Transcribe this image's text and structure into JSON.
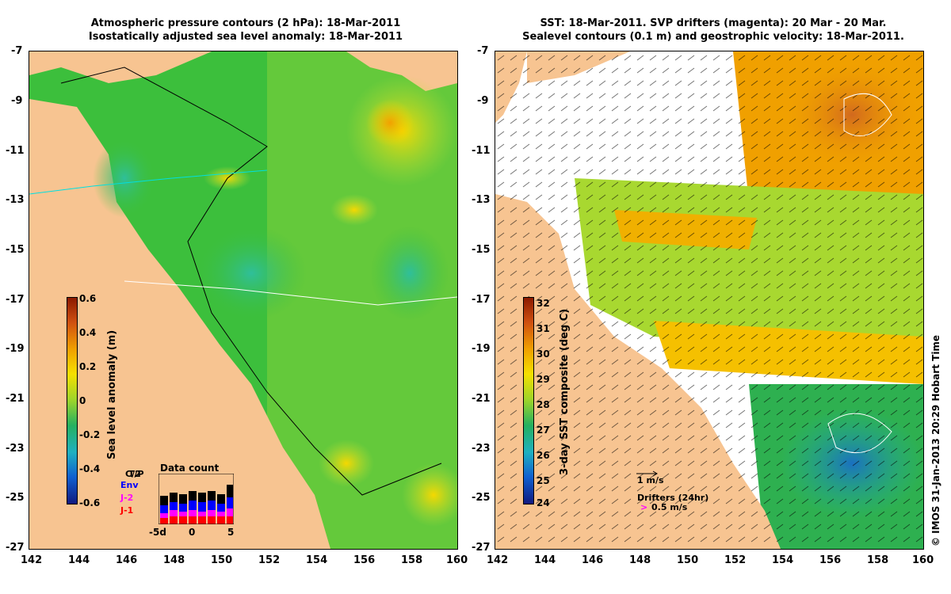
{
  "left_panel": {
    "title_line1": "Atmospheric pressure contours (2 hPa): 18-Mar-2011",
    "title_line2": "Isostatically adjusted sea level anomaly: 18-Mar-2011",
    "colorbar_title": "Sea level anomaly (m)",
    "colorbar_ticks": [
      "0.6",
      "0.4",
      "0.2",
      "0",
      "-0.2",
      "-0.4",
      "-0.6"
    ],
    "inset_title": "Data count",
    "inset_legend": [
      {
        "label": "C/2",
        "color": "#000000"
      },
      {
        "label": "T/P",
        "color": "#000000"
      },
      {
        "label": "Env",
        "color": "#0000ff"
      },
      {
        "label": "J-2",
        "color": "#ff00ff"
      },
      {
        "label": "J-1",
        "color": "#ff0000"
      }
    ],
    "inset_xticks": [
      "-5d",
      "0",
      "5"
    ]
  },
  "right_panel": {
    "title_line1": "SST: 18-Mar-2011. SVP drifters (magenta): 20 Mar - 20 Mar.",
    "title_line2": "Sealevel contours (0.1 m) and geostrophic velocity: 18-Mar-2011.",
    "colorbar_title": "3-day SST composite (deg C)",
    "colorbar_ticks": [
      "32",
      "31",
      "30",
      "29",
      "28",
      "27",
      "26",
      "25",
      "24"
    ],
    "velocity_scale": "1 m/s",
    "drifters_label": "Drifters (24hr)",
    "drifters_scale": "0.5 m/s",
    "drifter_arrow": ">"
  },
  "axes": {
    "x_ticks": [
      "142",
      "144",
      "146",
      "148",
      "150",
      "152",
      "154",
      "156",
      "158",
      "160"
    ],
    "y_ticks": [
      "-7",
      "-9",
      "-11",
      "-13",
      "-15",
      "-17",
      "-19",
      "-21",
      "-23",
      "-25",
      "-27"
    ]
  },
  "credit": "© IMOS 31-Jan-2013 20:29 Hobart Time",
  "colors": {
    "land": "#f7c491",
    "sea_green": "#3cbf3c",
    "frame": "#000000"
  }
}
